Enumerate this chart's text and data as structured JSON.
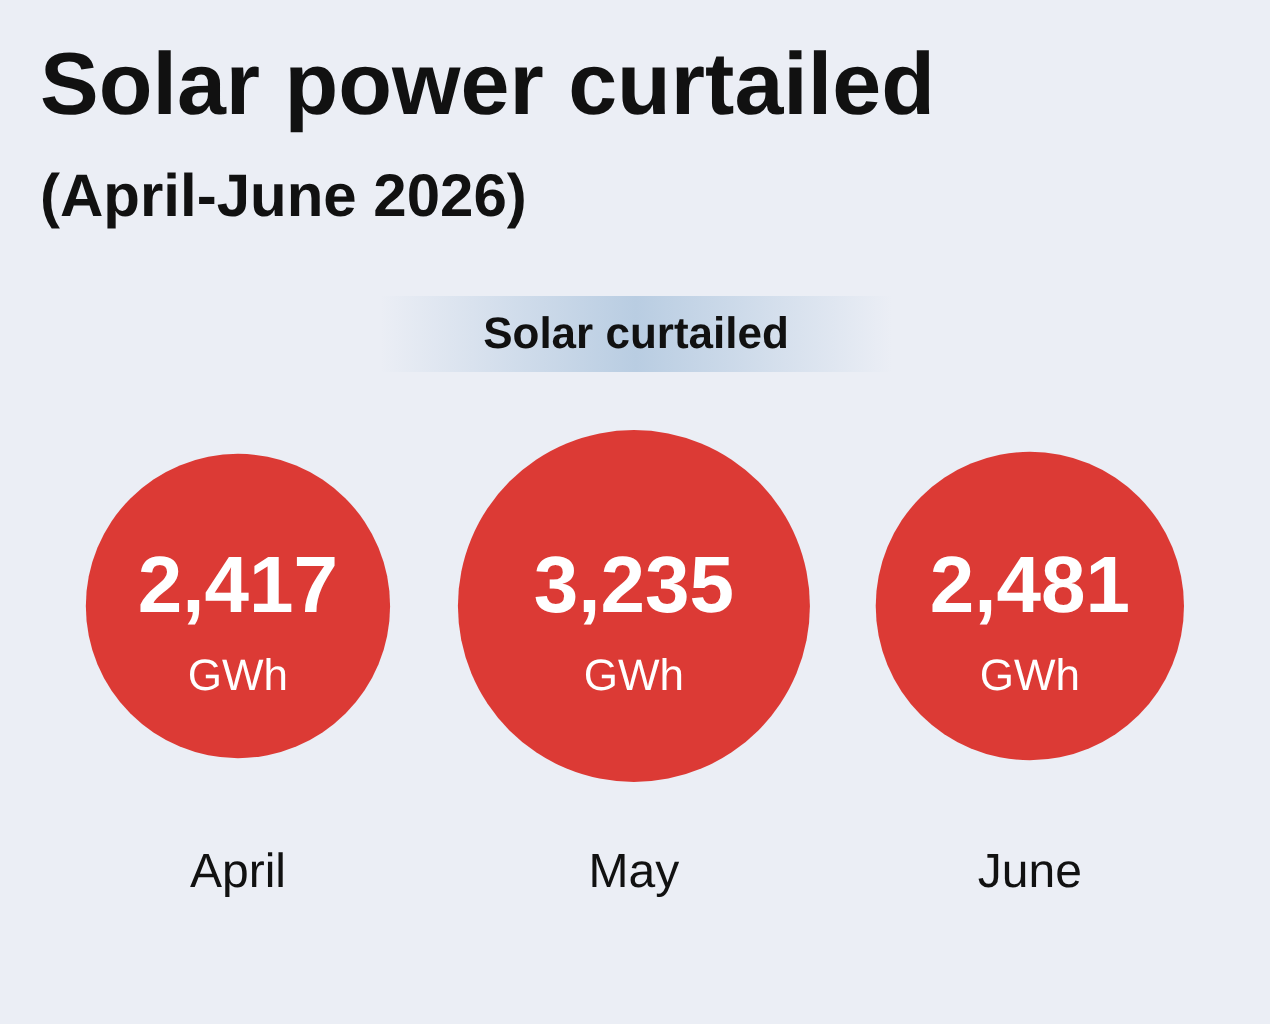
{
  "chart_data": {
    "type": "other",
    "title": "Solar power curtailed",
    "subtitle": "(April-June 2026)",
    "annotations": [
      "Solar curtailed"
    ],
    "categories": [
      "April",
      "May",
      "June"
    ],
    "values": [
      2417,
      3235,
      2481
    ],
    "value_labels": [
      "2,417 GWh",
      "3,235 GWh",
      "2,481 GWh"
    ],
    "color": "#dc3a35"
  }
}
